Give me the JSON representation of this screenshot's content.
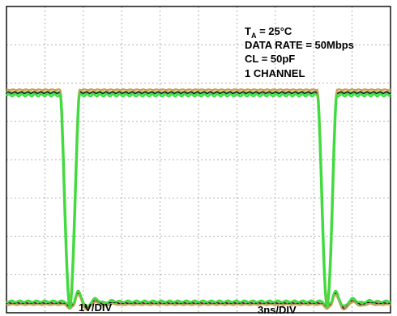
{
  "chart_data": {
    "type": "line",
    "annotations": {
      "ta_main": "T",
      "ta_sub": "A",
      "ta_rest": " = 25°C",
      "data_rate": "DATA RATE = 50Mbps",
      "cl": "CL = 50pF",
      "channel": "1 CHANNEL"
    },
    "x_scale_label": "3ns/DIV",
    "y_scale_label": "1V/DIV",
    "x_divisions": 10,
    "y_divisions": 8,
    "xlim": [
      0,
      10
    ],
    "ylim": [
      0,
      8
    ],
    "grid": true,
    "high_level_div": 5.75,
    "low_level_div": 0.25,
    "pulse_centers_div": [
      1.65,
      8.35
    ],
    "pulse_width_div": 0.25,
    "colors": {
      "green": "#3fdc3f",
      "pink": "#e86fc0",
      "cyan": "#36c8d8",
      "tan": "#c9a05a",
      "black": "#000000",
      "yellow": "#d8d840"
    },
    "series": [
      {
        "color": "#3fdc3f",
        "offset": 0.0
      },
      {
        "color": "#e86fc0",
        "offset": 0.03
      },
      {
        "color": "#36c8d8",
        "offset": -0.03
      },
      {
        "color": "#d8d840",
        "offset": 0.05
      },
      {
        "color": "#000000",
        "offset": 0.0
      }
    ]
  }
}
